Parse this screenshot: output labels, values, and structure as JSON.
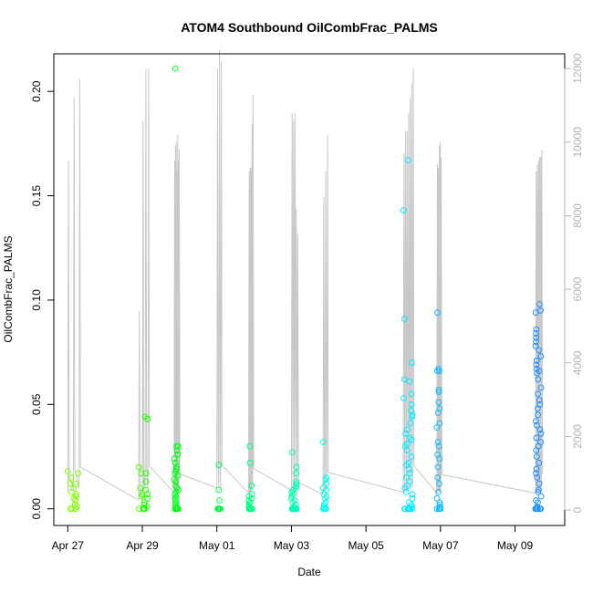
{
  "chart_data": {
    "type": "scatter",
    "title": "ATOM4 Southbound OilCombFrac_PALMS",
    "xlabel": "Date",
    "ylabel": "OilCombFrac_PALMS",
    "xlim": [
      "2018-04-26T15:00",
      "2018-05-10T08:00"
    ],
    "ylim": [
      -0.008,
      0.218
    ],
    "x_ticks": [
      {
        "date": "2018-04-27",
        "label": "Apr 27"
      },
      {
        "date": "2018-04-29",
        "label": "Apr 29"
      },
      {
        "date": "2018-05-01",
        "label": "May 01"
      },
      {
        "date": "2018-05-03",
        "label": "May 03"
      },
      {
        "date": "2018-05-05",
        "label": "May 05"
      },
      {
        "date": "2018-05-07",
        "label": "May 07"
      },
      {
        "date": "2018-05-09",
        "label": "May 09"
      }
    ],
    "y_ticks": [
      "0.00",
      "0.05",
      "0.10",
      "0.15",
      "0.20"
    ],
    "y2_ticks": [
      "0",
      "2000",
      "4000",
      "6000",
      "8000",
      "10000",
      "12000"
    ],
    "y2lim": [
      -420,
      12400
    ],
    "point_style": "open-circle",
    "color_gradient": [
      "#7fff00",
      "#00ff00",
      "#00ff7f",
      "#00ffff",
      "#1e90ff"
    ],
    "altitude_color": "#c8c8c8",
    "flights": [
      {
        "day": "2018-04-27",
        "hours": [
          0.0,
          0.3
        ],
        "values": [
          0.018,
          0.017,
          0.015,
          0.012,
          0.012,
          0.01,
          0.008,
          0.007,
          0.006,
          0.005,
          0.004,
          0.002,
          0.001,
          0.0,
          0.0,
          0.0,
          0.0
        ],
        "alt_peaks": [
          9500,
          11200,
          11700
        ]
      },
      {
        "day": "2018-04-28",
        "hours": [
          0.9,
          1.0
        ],
        "values": [
          0.02,
          0.017,
          0.01,
          0.007,
          0.006,
          0.0
        ],
        "alt_peaks": [
          5400,
          5400
        ]
      },
      {
        "day": "2018-04-29",
        "hours": [
          0.0,
          0.15
        ],
        "values": [
          0.044,
          0.043,
          0.017,
          0.013,
          0.009,
          0.007,
          0.005,
          0.003,
          0.002,
          0.001,
          0.0,
          0.0,
          0.0,
          0.0
        ],
        "alt_peaks": [
          10600,
          12000,
          12000
        ]
      },
      {
        "day": "2018-04-29",
        "hours": [
          0.85,
          0.97
        ],
        "values": [
          0.211,
          0.03,
          0.03,
          0.028,
          0.026,
          0.024,
          0.022,
          0.02,
          0.019,
          0.018,
          0.017,
          0.016,
          0.014,
          0.013,
          0.011,
          0.01,
          0.009,
          0.008,
          0.007,
          0.006,
          0.005,
          0.004,
          0.003,
          0.002,
          0.001,
          0.0,
          0.0,
          0.0,
          0.0,
          0.0,
          0.0,
          0.0
        ],
        "alt_peaks": [
          9500,
          9900,
          10000,
          9200,
          10200,
          9500,
          9800
        ]
      },
      {
        "day": "2018-05-01",
        "hours": [
          0.0,
          0.1
        ],
        "values": [
          0.021,
          0.009,
          0.004,
          0.0,
          0.0,
          0.0,
          0.0,
          0.0,
          0.0
        ],
        "alt_peaks": [
          12000,
          12500,
          12200
        ]
      },
      {
        "day": "2018-05-01",
        "hours": [
          0.85,
          0.95
        ],
        "values": [
          0.03,
          0.022,
          0.011,
          0.007,
          0.006,
          0.005,
          0.004,
          0.003,
          0.002,
          0.001,
          0.0,
          0.0,
          0.0,
          0.0,
          0.0,
          0.0
        ],
        "alt_peaks": [
          9200,
          9300,
          9300,
          10500,
          11300
        ]
      },
      {
        "day": "2018-05-03",
        "hours": [
          0.0,
          0.15
        ],
        "values": [
          0.027,
          0.02,
          0.017,
          0.013,
          0.012,
          0.011,
          0.01,
          0.009,
          0.008,
          0.007,
          0.006,
          0.005,
          0.004,
          0.003,
          0.002,
          0.001,
          0.0,
          0.0,
          0.0,
          0.0,
          0.0,
          0.0,
          0.0,
          0.0
        ],
        "alt_peaks": [
          10800,
          10600,
          10800,
          8200,
          7500
        ]
      },
      {
        "day": "2018-05-03",
        "hours": [
          0.85,
          0.95
        ],
        "values": [
          0.032,
          0.015,
          0.014,
          0.012,
          0.01,
          0.009,
          0.007,
          0.006,
          0.005,
          0.003,
          0.002,
          0.001,
          0.0,
          0.0,
          0.0,
          0.0,
          0.0,
          0.0
        ],
        "alt_peaks": [
          8500,
          9200,
          10200
        ]
      },
      {
        "day": "2018-05-06",
        "hours": [
          0.0,
          0.25
        ],
        "values": [
          0.167,
          0.143,
          0.091,
          0.07,
          0.062,
          0.061,
          0.055,
          0.053,
          0.05,
          0.047,
          0.045,
          0.044,
          0.041,
          0.038,
          0.036,
          0.034,
          0.033,
          0.031,
          0.03,
          0.028,
          0.025,
          0.022,
          0.021,
          0.019,
          0.017,
          0.015,
          0.013,
          0.011,
          0.01,
          0.008,
          0.007,
          0.005,
          0.003,
          0.002,
          0.001,
          0.0,
          0.0,
          0.0,
          0.0,
          0.0,
          0.0,
          0.0,
          0.0
        ],
        "alt_peaks": [
          9700,
          10300,
          10300,
          10800,
          11200,
          11600,
          12000
        ]
      },
      {
        "day": "2018-05-06",
        "hours": [
          0.9,
          1.0
        ],
        "values": [
          0.094,
          0.067,
          0.066,
          0.066,
          0.057,
          0.056,
          0.051,
          0.048,
          0.046,
          0.041,
          0.039,
          0.032,
          0.03,
          0.026,
          0.024,
          0.02,
          0.015,
          0.012,
          0.008,
          0.005,
          0.003,
          0.002,
          0.001,
          0.0,
          0.0,
          0.0,
          0.0,
          0.0,
          0.0
        ],
        "alt_peaks": [
          9400,
          9300,
          9900,
          10000,
          9600
        ]
      },
      {
        "day": "2018-05-09",
        "hours": [
          0.55,
          0.7
        ],
        "values": [
          0.098,
          0.095,
          0.094,
          0.086,
          0.084,
          0.082,
          0.08,
          0.078,
          0.076,
          0.073,
          0.071,
          0.069,
          0.067,
          0.066,
          0.065,
          0.062,
          0.058,
          0.055,
          0.052,
          0.05,
          0.048,
          0.045,
          0.042,
          0.04,
          0.038,
          0.036,
          0.034,
          0.032,
          0.03,
          0.028,
          0.025,
          0.022,
          0.019,
          0.017,
          0.015,
          0.012,
          0.009,
          0.008,
          0.006,
          0.004,
          0.003,
          0.001,
          0.0,
          0.0,
          0.0,
          0.0,
          0.0,
          0.0,
          0.0,
          0.0
        ],
        "alt_peaks": [
          9200,
          9400,
          9500,
          9600,
          9600,
          9800
        ]
      }
    ]
  }
}
